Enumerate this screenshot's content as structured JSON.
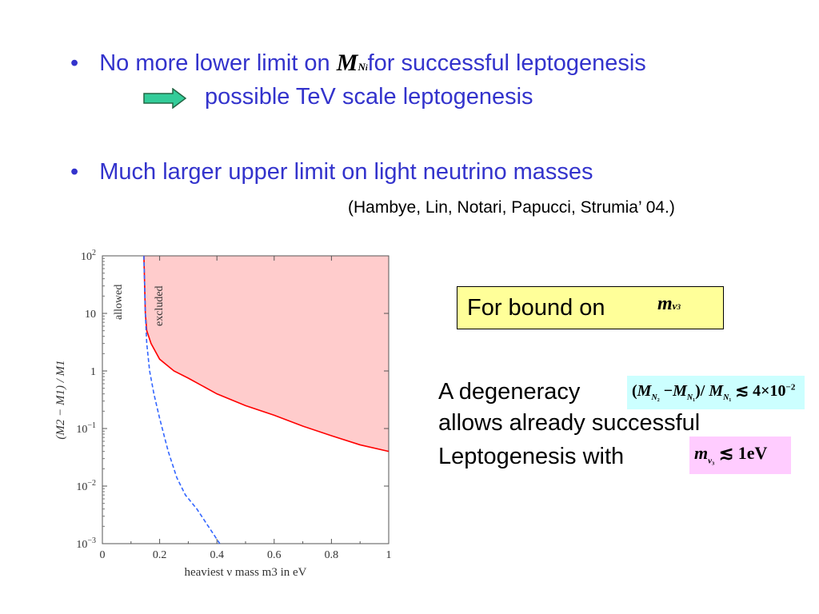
{
  "bullets": [
    {
      "before": "No more lower limit on ",
      "math_main": "M",
      "math_sub": "N",
      "math_subsub": "i",
      "after": "for successful leptogenesis"
    },
    {
      "text": "Much larger upper limit on light neutrino masses"
    }
  ],
  "bullet_symbol": "•",
  "arrow_text": "possible TeV scale leptogenesis",
  "citation": "(Hambye, Lin, Notari, Papucci, Strumia’ 04.)",
  "bound_box": {
    "label": "For bound on",
    "math_main": "m",
    "math_sub": "ν",
    "math_subsub": "3"
  },
  "degeneracy": {
    "lines": [
      "A degeneracy",
      "allows already successful",
      "Leptogenesis with"
    ],
    "formula": "(M_N2 − M_N1)/M_N1 ≲ 4×10⁻²",
    "formula2": "m_ν3 ≲ 1eV"
  },
  "colors": {
    "blue_text": "#3333cc",
    "arrow": "#33cc99",
    "excluded_fill": "#ffcccc",
    "red_curve": "#ff0000",
    "blue_curve": "#3366ff"
  },
  "chart_data": {
    "type": "area",
    "xlabel": "heaviest ν mass m3 in eV",
    "ylabel": "(M2 − M1) / M1",
    "y_scale": "log",
    "xlim": [
      0,
      1
    ],
    "ylim": [
      0.001,
      100
    ],
    "x_ticks": [
      "0",
      "0.2",
      "0.4",
      "0.6",
      "0.8",
      "1"
    ],
    "y_ticks": [
      "10^-3",
      "10^-2",
      "10^-1",
      "1",
      "10",
      "10^2"
    ],
    "annotations": [
      "allowed",
      "excluded"
    ],
    "series": [
      {
        "style": "solid-red",
        "x": [
          0.145,
          0.15,
          0.155,
          0.17,
          0.2,
          0.25,
          0.3,
          0.4,
          0.5,
          0.6,
          0.7,
          0.8,
          0.9,
          1.0
        ],
        "y": [
          100,
          10,
          5,
          3,
          1.6,
          1.0,
          0.75,
          0.4,
          0.25,
          0.17,
          0.11,
          0.075,
          0.052,
          0.04
        ]
      },
      {
        "style": "dashed-blue",
        "x": [
          0.145,
          0.15,
          0.155,
          0.165,
          0.18,
          0.2,
          0.23,
          0.26,
          0.29,
          0.33,
          0.37,
          0.41
        ],
        "y": [
          100,
          10,
          3,
          1,
          0.4,
          0.15,
          0.04,
          0.014,
          0.007,
          0.004,
          0.002,
          0.001
        ]
      }
    ]
  }
}
